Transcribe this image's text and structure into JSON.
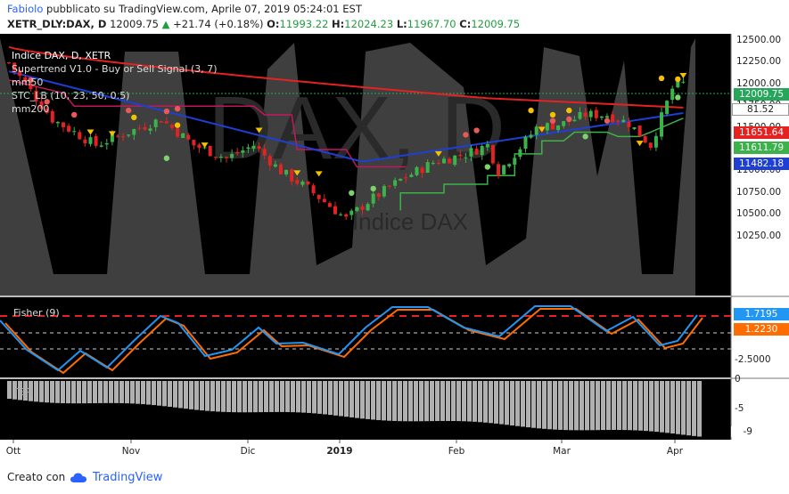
{
  "header": {
    "author": "Fabiolo",
    "published_text": "pubblicato su TradingView.com, Aprile 07, 2019 05:24:01 EST",
    "symbol": "XETR_DLY:DAX, D",
    "last": "12009.75",
    "change_arrow": "▲",
    "change": "+21.74 (+0.18%)",
    "open_label": "O:",
    "open": "11993.22",
    "high_label": "H:",
    "high": "12024.23",
    "low_label": "L:",
    "low": "11967.70",
    "close_label": "C:",
    "close": "12009.75"
  },
  "legend": {
    "title": "Indice DAX, D, XETR",
    "line1": "Supertrend V1.0 - Buy or Sell Signal (3, 7)",
    "line2": "mm50",
    "line3": "STC_LB (10, 23, 50, 0.5)",
    "line4": "mm200"
  },
  "price_axis": {
    "ticks": [
      "12500.00",
      "12250.00",
      "12000.00",
      "11750.00",
      "11500.00",
      "11250.00",
      "11000.00",
      "10750.00",
      "10500.00",
      "10250.00"
    ],
    "tags": [
      {
        "text": "12009.75",
        "color": "#26a65b"
      },
      {
        "text": "81.52",
        "color": "#ffffff"
      },
      {
        "text": "11651.64",
        "color": "#e52222"
      },
      {
        "text": "11611.79",
        "color": "#3cb34a"
      },
      {
        "text": "11482.18",
        "color": "#1e3fd6"
      }
    ]
  },
  "fisher": {
    "label": "Fisher (9)",
    "tick": "-2.5000",
    "tag_blue": "1.7195",
    "tag_orange": "1.2230"
  },
  "ter": {
    "label": "TER",
    "ticks": [
      "0",
      "-5",
      "-9"
    ]
  },
  "time_axis": [
    "Ott",
    "Nov",
    "Dic",
    "2019",
    "Feb",
    "Mar",
    "Apr"
  ],
  "watermark": {
    "big": "DAX, D",
    "small": "Indice DAX"
  },
  "footer": {
    "created_with": "Creato con",
    "brand": "TradingView"
  },
  "colors": {
    "mm50": "#e52222",
    "mm200": "#1e3fd6",
    "supertrend_up": "#3cb34a",
    "supertrend_down": "#c2185b",
    "up": "#3cb34a",
    "down": "#e52222"
  }
}
